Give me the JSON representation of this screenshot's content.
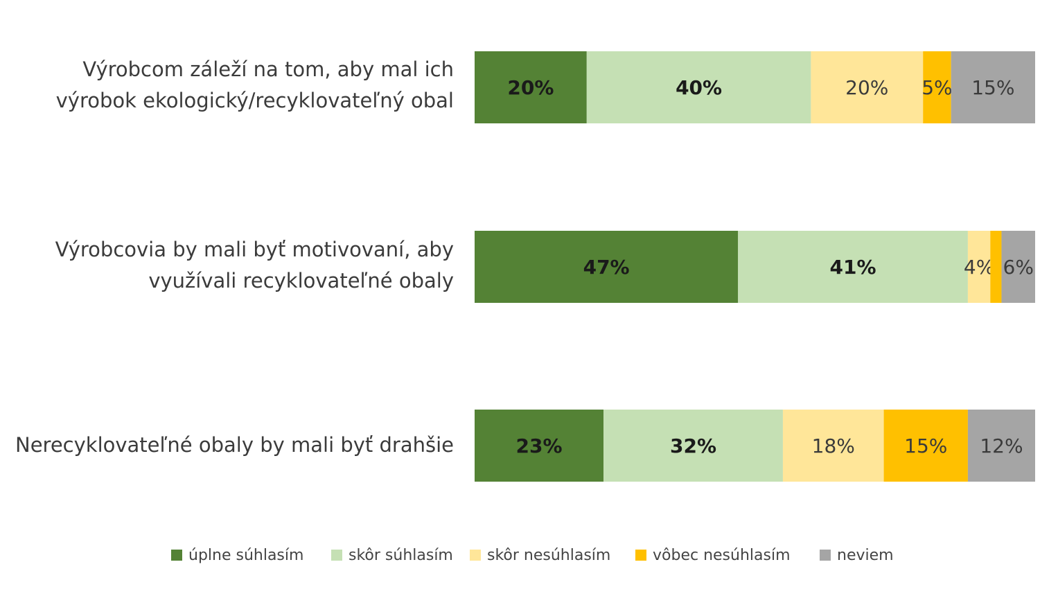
{
  "chart_data": {
    "type": "bar",
    "orientation": "horizontal",
    "stacked": true,
    "normalized": true,
    "categories": [
      "Výrobcom záleží na tom, aby mal ich výrobok ekologický/recyklovateľný obal",
      "Výrobcovia by mali byť motivovaní, aby využívali recyklovateľné obaly",
      "Nerecyklovateľné obaly by mali byť drahšie"
    ],
    "series": [
      {
        "name": "úplne súhlasím",
        "color": "#548235",
        "values": [
          20,
          47,
          23
        ],
        "labels": [
          "20%",
          "47%",
          "23%"
        ]
      },
      {
        "name": "skôr súhlasím",
        "color": "#c5e0b4",
        "values": [
          40,
          41,
          32
        ],
        "labels": [
          "40%",
          "41%",
          "32%"
        ]
      },
      {
        "name": "skôr nesúhlasím",
        "color": "#ffe699",
        "values": [
          20,
          4,
          18
        ],
        "labels": [
          "20%",
          "4%",
          "18%"
        ]
      },
      {
        "name": "vôbec nesúhlasím",
        "color": "#ffc000",
        "values": [
          5,
          2,
          15
        ],
        "labels": [
          "5%",
          "",
          "15%"
        ]
      },
      {
        "name": "neviem",
        "color": "#a5a5a5",
        "values": [
          15,
          6,
          12
        ],
        "labels": [
          "15%",
          "6%",
          "12%"
        ]
      }
    ],
    "title": "",
    "xlabel": "",
    "ylabel": "",
    "xlim": [
      0,
      100
    ],
    "grid": false,
    "legend_position": "bottom"
  }
}
